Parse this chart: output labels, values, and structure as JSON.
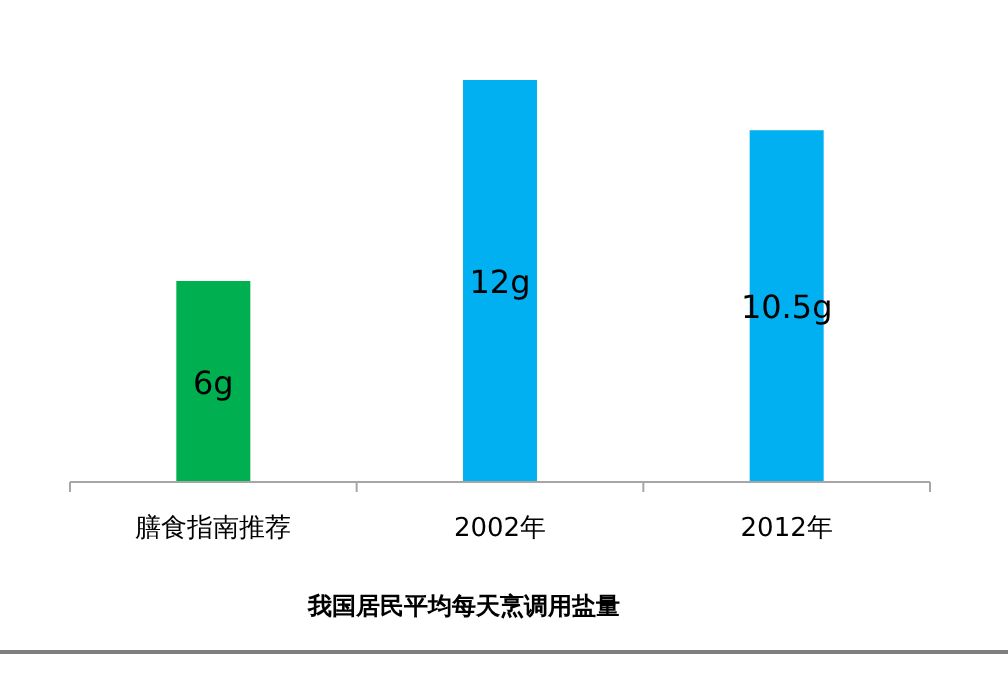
{
  "chart_data": {
    "type": "bar",
    "title": "我国居民平均每天烹调用盐量",
    "categories": [
      "膳食指南推荐",
      "2002年",
      "2012年"
    ],
    "values": [
      6,
      12,
      10.5
    ],
    "colors": [
      "#00b050",
      "#00b0f0",
      "#00b0f0"
    ],
    "value_labels": [
      "6g",
      "12g",
      "10.5g"
    ]
  }
}
